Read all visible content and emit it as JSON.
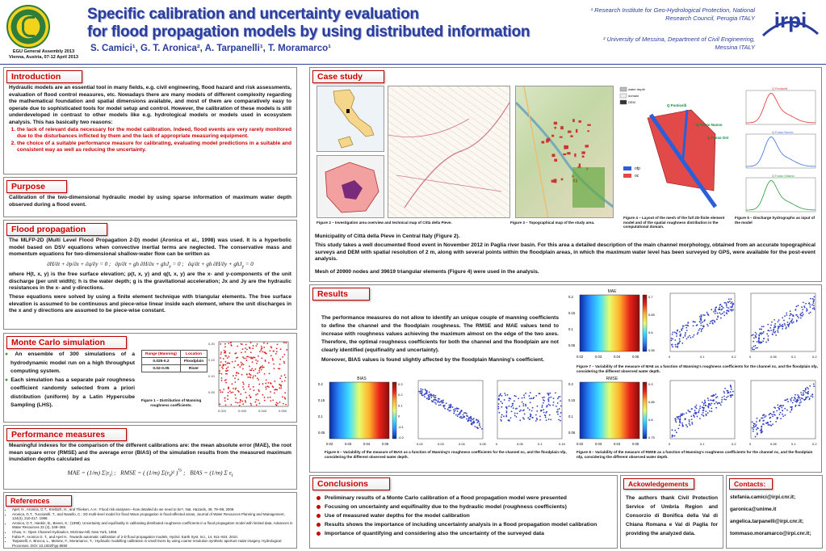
{
  "header": {
    "title_line1": "Specific calibration and uncertainty evaluation",
    "title_line2": "for flood propagation models by using distributed information",
    "authors": "S. Camici¹, G. T. Aronica², A. Tarpanelli¹, T. Moramarco¹",
    "event_line1": "EGU General Assembly 2013",
    "event_line2": "Vienna, Austria,  07-12 April 2013",
    "affil1_line1": "¹ Research Institute for Geo-Hydrological Protection, National",
    "affil1_line2": "Research Council, Perugia ITALY",
    "affil2_line1": "² University of Messina, Department of Civil Engineering,",
    "affil2_line2": "Messina ITALY",
    "logo_text": "irpi"
  },
  "intro": {
    "heading": "Introduction",
    "text": "Hydraulic models are an essential tool in many fields, e.g. civil engineering, flood hazard and risk assessments, evaluation of flood control measures, etc. Nowadays there are many models of different complexity regarding the mathematical foundation and spatial dimensions available, and most of them are comparatively easy to operate due to sophisticated tools for model setup and control. However, the calibration of these models is still underdeveloped in contrast to other models like e.g. hydrological models or models used in ecosystem analysis. This has basically two reasons:",
    "items": [
      "the lack of relevant data necessary for the model calibration. Indeed, flood events are very rarely monitored due to the disturbances inflicted by them and the lack of appropriate measuring equipment.",
      "the choice of a suitable performance measure for calibrating, evaluating model predictions in a suitable and consistent way as well as reducing the uncertainty."
    ]
  },
  "purpose": {
    "heading": "Purpose",
    "text": "Calibration of the two-dimensional hydraulic model by using sparse information of maximum water depth observed during a flood event."
  },
  "flood": {
    "heading": "Flood propagation",
    "text1": "The MLFP-2D (Multi Level Flood Propagation 2-D) model (Aronica et al., 1998) was used. It is a hyperbolic model based on DSV equations when convective inertial terms are neglected. The conservative mass and momentum equations for two-dimensional shallow-water flow can be written as",
    "text2": "where H(t, x, y) is the free surface elevation; p(t, x, y) and q(t, x, y) are the x- and y-components of the unit discharge (per unit width); h is the water depth; g is the gravitational acceleration; Jx and Jy are the hydraulic resistances in the x- and y-directions.",
    "text3": "These equations were solved by using a finite element technique with triangular elements. The free surface elevation is assumed to be continuous and piece-wise linear inside each element, where the unit discharges in the x and y directions are assumed to be piece-wise constant."
  },
  "mc": {
    "heading": "Monte Carlo simulation",
    "items": [
      "An ensemble of 300 simulations of a hydrodynamic model run on a high throughput computing system.",
      "Each simulation has a separate pair roughness coefficient randomly selected from a priori distribution (uniform) by a Latin Hypercube Sampling (LHS)."
    ],
    "table": {
      "headers": [
        "Range (Manning)",
        "Location"
      ],
      "rows": [
        [
          "0.025-0.2",
          "Floodplain"
        ],
        [
          "0.02-0.05",
          "River"
        ]
      ]
    },
    "fig_caption": "Figure 1 – Distribution of Manning roughness coefficients."
  },
  "perf": {
    "heading": "Performance measures",
    "text": "Meaningful indexes for the comparison of the different calibrations are: the mean absolute error (MAE), the root mean square error (RMSE) and the average error (BIAS) of the simulation results from the measured maximum inundation depths calculated as"
  },
  "refs": {
    "heading": "References",
    "items": [
      "Apel, H., Aronica, G.T., Kreibich, H., and Thieken, A.H.: Flood risk analyses—how detailed do we need to be?, Nat. Hazards, 49, 79–98, 2009.",
      "Aronica, G.T., Tucciarelli, T., and Nasello, C.: 2D multi-level model for flood Wave propagation in flood-affected areas, Journal of Water Resources Planning and Management, 124(4), 210-217, 1998.",
      "Aronica, G.T., Hankin, B., Beven, K.: (1998). Uncertainty and equifinality in calibrating distributed roughness coefficients in a flood propagation model with limited data. Advances in Water Resources 22 (4), 349–365.",
      "Chow, V.: Open Channel Hydraulics. McGraw-Hill, New York, 1959.",
      "Fabio P., Aronica G. T., and Apel H., Towards automatic calibration of 2-D flood propagation models, Hydrol. Earth Syst. Sci., 14, 911–924, 2010.",
      "Tarpanelli, A. Brocca, L., Melone, F., Moramarco, T.,: Hydraulic modelling calibration in small rivers by using coarse resolution synthetic aperture radar imagery. Hydrological Processes. DOI: 10.1002/hyp.9550"
    ]
  },
  "case": {
    "heading": "Case study",
    "fig2": "Figure 2 – Investigation area overview and technical map of Città della Pieve.",
    "fig3": "Figure 3 – Topographical map of the study area.",
    "fig4": "Figure 4 – Layout of the mesh of the full 2D-finite element model and of the spatial roughness distribution in the computational domain.",
    "fig5": "Figure 5 – Discharge hydrographs as input of the model",
    "subtitle": "Municipality of Città della Pieve in Central Italy (Figure 2).",
    "text1": "This study takes a well documented flood event in November 2012 in Paglia river basin. For this area a detailed description of the main channel morphology, obtained from an accurate topographical surveys and DEM with spatial resolution of 2 m, along with several points within the floodplain areas, in which the maximum water level has been surveyed by GPS, were available for the post-event analysis.",
    "text2": "Mesh of 20900 nodes and 39619 triangular elements (Figure 4) were used in the analysis.",
    "map_labels": [
      "Q Ponticelli",
      "Q Fosso Nuovo",
      "Q Fosso Ostaria"
    ],
    "legend": [
      "water depth",
      "domain",
      "DEM"
    ],
    "roughness_legend": [
      "nfp",
      "nc"
    ]
  },
  "results": {
    "heading": "Results",
    "text1": "The performance measures do not allow to identify an unique couple of manning coefficients to define the channel and the floodplain roughness. The RMSE and MAE values tend to increase with roughness values achieving the maximum almost on the edge of the two axes. Therefore, the optimal roughness coefficients for both the channel and the floodplain are not clearly identified (equifinality and uncertainty).",
    "text2": "Moreover, BIAS values is found slightly affected by the floodplain Manning's coefficient.",
    "fig6": "Figure 6 – Variability of the measure of BIAS as a function of Manning's roughness coefficients for the channel nc, and the floodplain nfp, considering the different observed water depth.",
    "fig7": "Figure 7 – Variability of the measure of MAE as a function of Manning's roughness coefficients for the channel nc, and the floodplain nfp, considering the different observed water depth.",
    "fig8": "Figure 8 – Variability of the measure of RMSE as a function of Manning's roughness coefficients for the channel nc, and the floodplain nfp, considering the different observed water depth.",
    "plot_titles": [
      "MAE",
      "BIAS",
      "RMSE"
    ]
  },
  "conclusions": {
    "heading": "Conclusions",
    "items": [
      "Preliminary results of a Monte Carlo calibration of a flood propagation model were presented",
      "Focusing on uncertainty and equifinality due to the hydraulic model (roughness coefficients)",
      "Use of measured water depths for the model calibration",
      "Results shows the importance of including uncertainty analysis in a flood propagation model calibration",
      "Importance of quantifying and considering also the uncertainty of the surveyed data"
    ]
  },
  "ack": {
    "heading": "Ackowledgements",
    "text": "The authors thank Civil Protection Service of Umbria Region and Consorzio di Bonifica della Val di Chiana Romana e Val di Paglia for providing the analyzed data."
  },
  "contacts": {
    "heading": "Contacts:",
    "items": [
      "stefania.camici@irpi.cnr.it;",
      "garonica@unime.it",
      "angelica.tarpanelli@irpi.cnr.it;",
      "tommaso.moramarco@irpi.cnr.it;"
    ]
  }
}
